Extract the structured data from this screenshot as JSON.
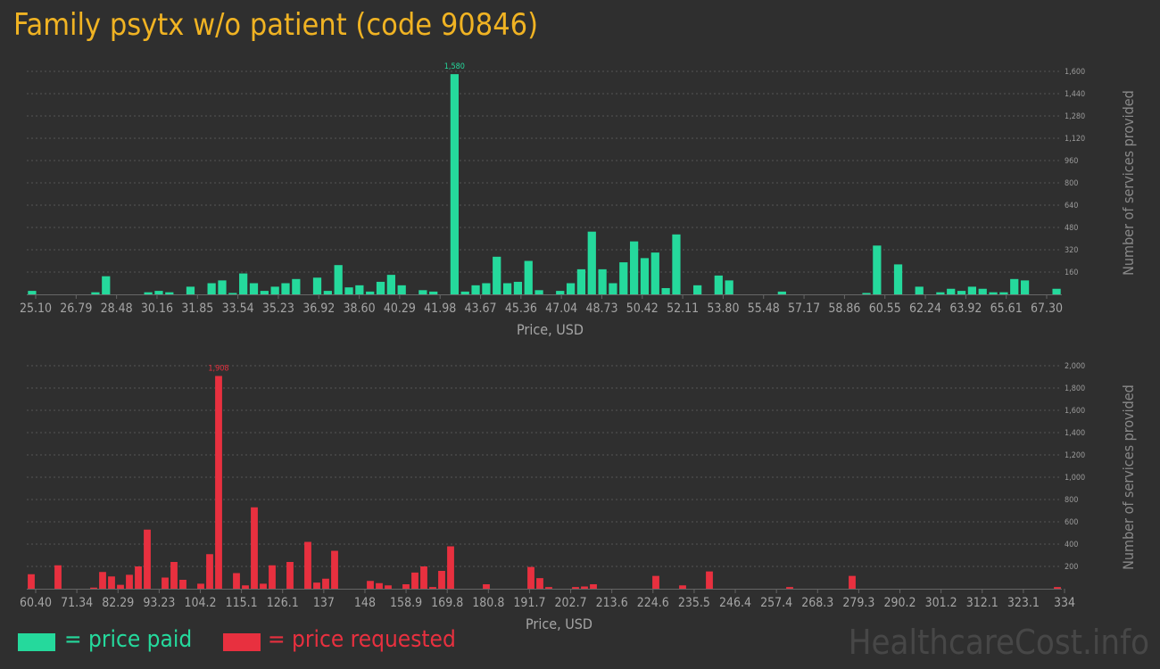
{
  "title": "Family psytx w/o patient (code 90846)",
  "colors": {
    "paid": "#25d99c",
    "requested": "#e8303f",
    "title": "#f0b323"
  },
  "legend": {
    "paid": "= price paid",
    "requested": "= price requested"
  },
  "watermark": "HealthcareCost.info",
  "chart_data": [
    {
      "type": "bar",
      "xlabel": "Price, USD",
      "ylabel": "Number of services provided",
      "x_ticks": [
        "25.10",
        "26.79",
        "28.48",
        "30.16",
        "31.85",
        "33.54",
        "35.23",
        "36.92",
        "38.60",
        "40.29",
        "41.98",
        "43.67",
        "45.36",
        "47.04",
        "48.73",
        "50.42",
        "52.11",
        "53.80",
        "55.48",
        "57.17",
        "58.86",
        "60.55",
        "62.24",
        "63.92",
        "65.61",
        "67.30"
      ],
      "y_ticks": [
        160,
        320,
        480,
        640,
        800,
        960,
        1120,
        1280,
        1440,
        1600
      ],
      "y_tick_labels": [
        "160",
        "320",
        "480",
        "640",
        "800",
        "960",
        "1,120",
        "1,280",
        "1,440",
        "1,600"
      ],
      "ylim": [
        0,
        1600
      ],
      "max_label": "1,580",
      "series": [
        {
          "color_key": "paid",
          "values": [
            25,
            0,
            0,
            0,
            0,
            0,
            15,
            130,
            0,
            0,
            0,
            15,
            25,
            15,
            0,
            55,
            0,
            80,
            100,
            10,
            150,
            80,
            25,
            55,
            80,
            110,
            0,
            120,
            25,
            210,
            50,
            65,
            20,
            90,
            140,
            65,
            0,
            30,
            20,
            0,
            1580,
            20,
            65,
            80,
            270,
            80,
            90,
            240,
            30,
            0,
            25,
            80,
            180,
            450,
            180,
            80,
            230,
            380,
            260,
            300,
            45,
            430,
            0,
            65,
            0,
            135,
            100,
            0,
            0,
            0,
            0,
            20,
            0,
            0,
            0,
            0,
            0,
            0,
            0,
            10,
            350,
            0,
            215,
            0,
            55,
            0,
            15,
            40,
            25,
            55,
            40,
            15,
            15,
            110,
            100,
            0,
            0,
            40
          ]
        }
      ]
    },
    {
      "type": "bar",
      "xlabel": "Price, USD",
      "ylabel": "Number of services provided",
      "x_ticks": [
        "60.40",
        "71.34",
        "82.29",
        "93.23",
        "104.2",
        "115.1",
        "126.1",
        "137",
        "148",
        "158.9",
        "169.8",
        "180.8",
        "191.7",
        "202.7",
        "213.6",
        "224.6",
        "235.5",
        "246.4",
        "257.4",
        "268.3",
        "279.3",
        "290.2",
        "301.2",
        "312.1",
        "323.1",
        "334"
      ],
      "y_ticks": [
        200,
        400,
        600,
        800,
        1000,
        1200,
        1400,
        1600,
        1800,
        2000
      ],
      "y_tick_labels": [
        "200",
        "400",
        "600",
        "800",
        "1,000",
        "1,200",
        "1,400",
        "1,600",
        "1,800",
        "2,000"
      ],
      "ylim": [
        0,
        2000
      ],
      "max_label": "1,908",
      "series": [
        {
          "color_key": "requested",
          "values": [
            130,
            0,
            0,
            210,
            0,
            0,
            0,
            10,
            150,
            110,
            35,
            125,
            200,
            530,
            0,
            100,
            240,
            80,
            0,
            45,
            310,
            1908,
            0,
            140,
            30,
            730,
            45,
            210,
            0,
            240,
            0,
            420,
            55,
            90,
            340,
            0,
            0,
            0,
            70,
            50,
            30,
            0,
            40,
            145,
            200,
            15,
            160,
            380,
            0,
            0,
            0,
            40,
            0,
            0,
            0,
            0,
            195,
            95,
            15,
            0,
            0,
            15,
            20,
            40,
            0,
            0,
            0,
            0,
            0,
            0,
            115,
            0,
            0,
            30,
            0,
            0,
            155,
            0,
            0,
            0,
            0,
            0,
            0,
            0,
            0,
            15,
            0,
            0,
            0,
            0,
            0,
            0,
            115,
            0,
            0,
            0,
            0,
            0,
            0,
            0,
            0,
            0,
            0,
            0,
            0,
            0,
            0,
            0,
            0,
            0,
            0,
            0,
            0,
            0,
            0,
            15
          ]
        }
      ]
    }
  ]
}
